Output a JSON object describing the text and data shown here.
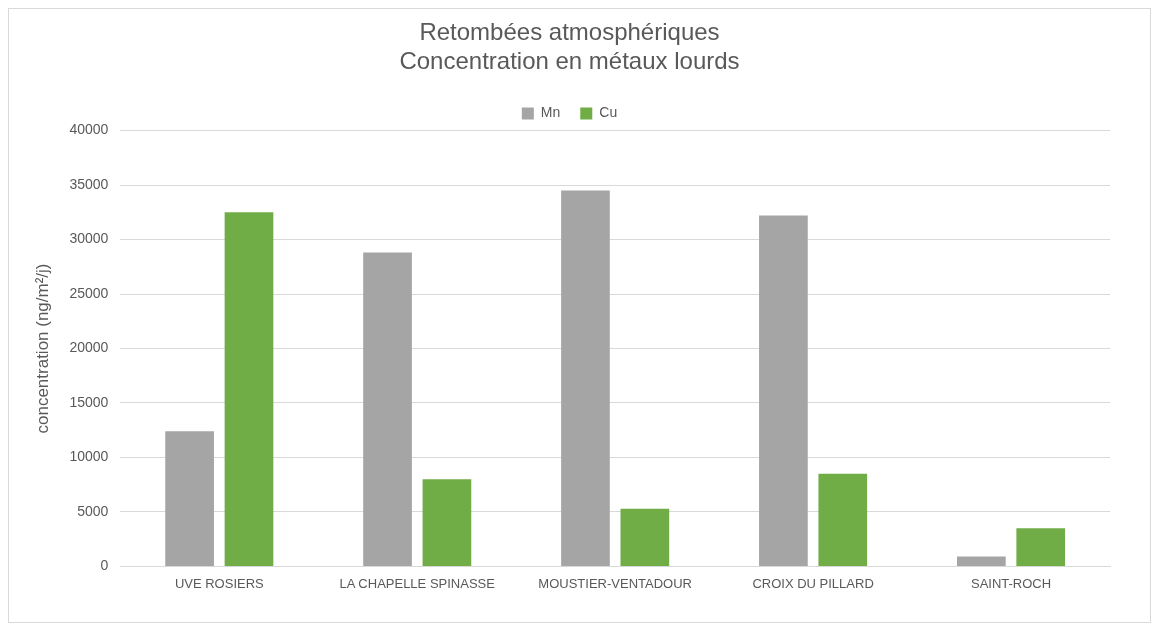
{
  "chart_data": {
    "type": "bar",
    "title": "Retombées atmosphériques\nConcentration en métaux lourds",
    "ylabel": "concentration (ng/m²/j)",
    "categories": [
      "UVE ROSIERS",
      "LA CHAPELLE SPINASSE",
      "MOUSTIER-VENTADOUR",
      "CROIX DU PILLARD",
      "SAINT-ROCH"
    ],
    "series": [
      {
        "name": "Mn",
        "color": "#a5a5a5",
        "values": [
          12400,
          28800,
          34500,
          32200,
          900
        ]
      },
      {
        "name": "Cu",
        "color": "#70ad47",
        "values": [
          32500,
          8000,
          5300,
          8500,
          3500
        ]
      }
    ],
    "ylim": [
      0,
      40000
    ],
    "yticks": [
      0,
      5000,
      10000,
      15000,
      20000,
      25000,
      30000,
      35000,
      40000
    ],
    "grid": "y",
    "legend": "top"
  }
}
